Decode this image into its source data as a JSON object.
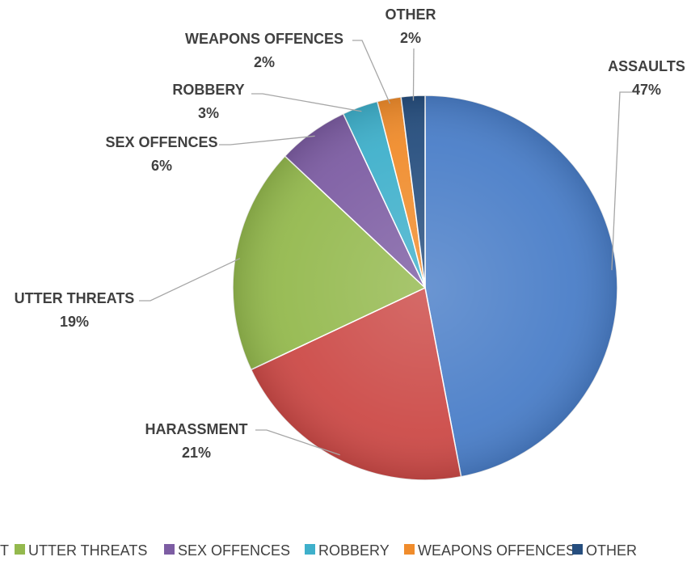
{
  "chart_data": {
    "type": "pie",
    "title": "",
    "legend_position": "bottom",
    "slices": [
      {
        "name": "ASSAULTS",
        "label": "ASSAULTS",
        "pct_label": "47%",
        "value": 47,
        "color": "#4a7ec8"
      },
      {
        "name": "HARASSMENT",
        "label": "HARASSMENT",
        "pct_label": "21%",
        "value": 21,
        "color": "#cc4a47"
      },
      {
        "name": "UTTER THREATS",
        "label": "UTTER THREATS",
        "pct_label": "19%",
        "value": 19,
        "color": "#94b94e"
      },
      {
        "name": "SEX OFFENCES",
        "label": "SEX OFFENCES",
        "pct_label": "6%",
        "value": 6,
        "color": "#7d5da3"
      },
      {
        "name": "ROBBERY",
        "label": "ROBBERY",
        "pct_label": "3%",
        "value": 3,
        "color": "#3fb0cb"
      },
      {
        "name": "WEAPONS OFFENCES",
        "label": "WEAPONS OFFENCES",
        "pct_label": "2%",
        "value": 2,
        "color": "#f08c2c"
      },
      {
        "name": "OTHER",
        "label": "OTHER",
        "pct_label": "2%",
        "value": 2,
        "color": "#264e7e"
      }
    ],
    "legend_entries": [
      "T",
      "UTTER THREATS",
      "SEX OFFENCES",
      "ROBBERY",
      "WEAPONS OFFENCES",
      "OTHER"
    ]
  }
}
